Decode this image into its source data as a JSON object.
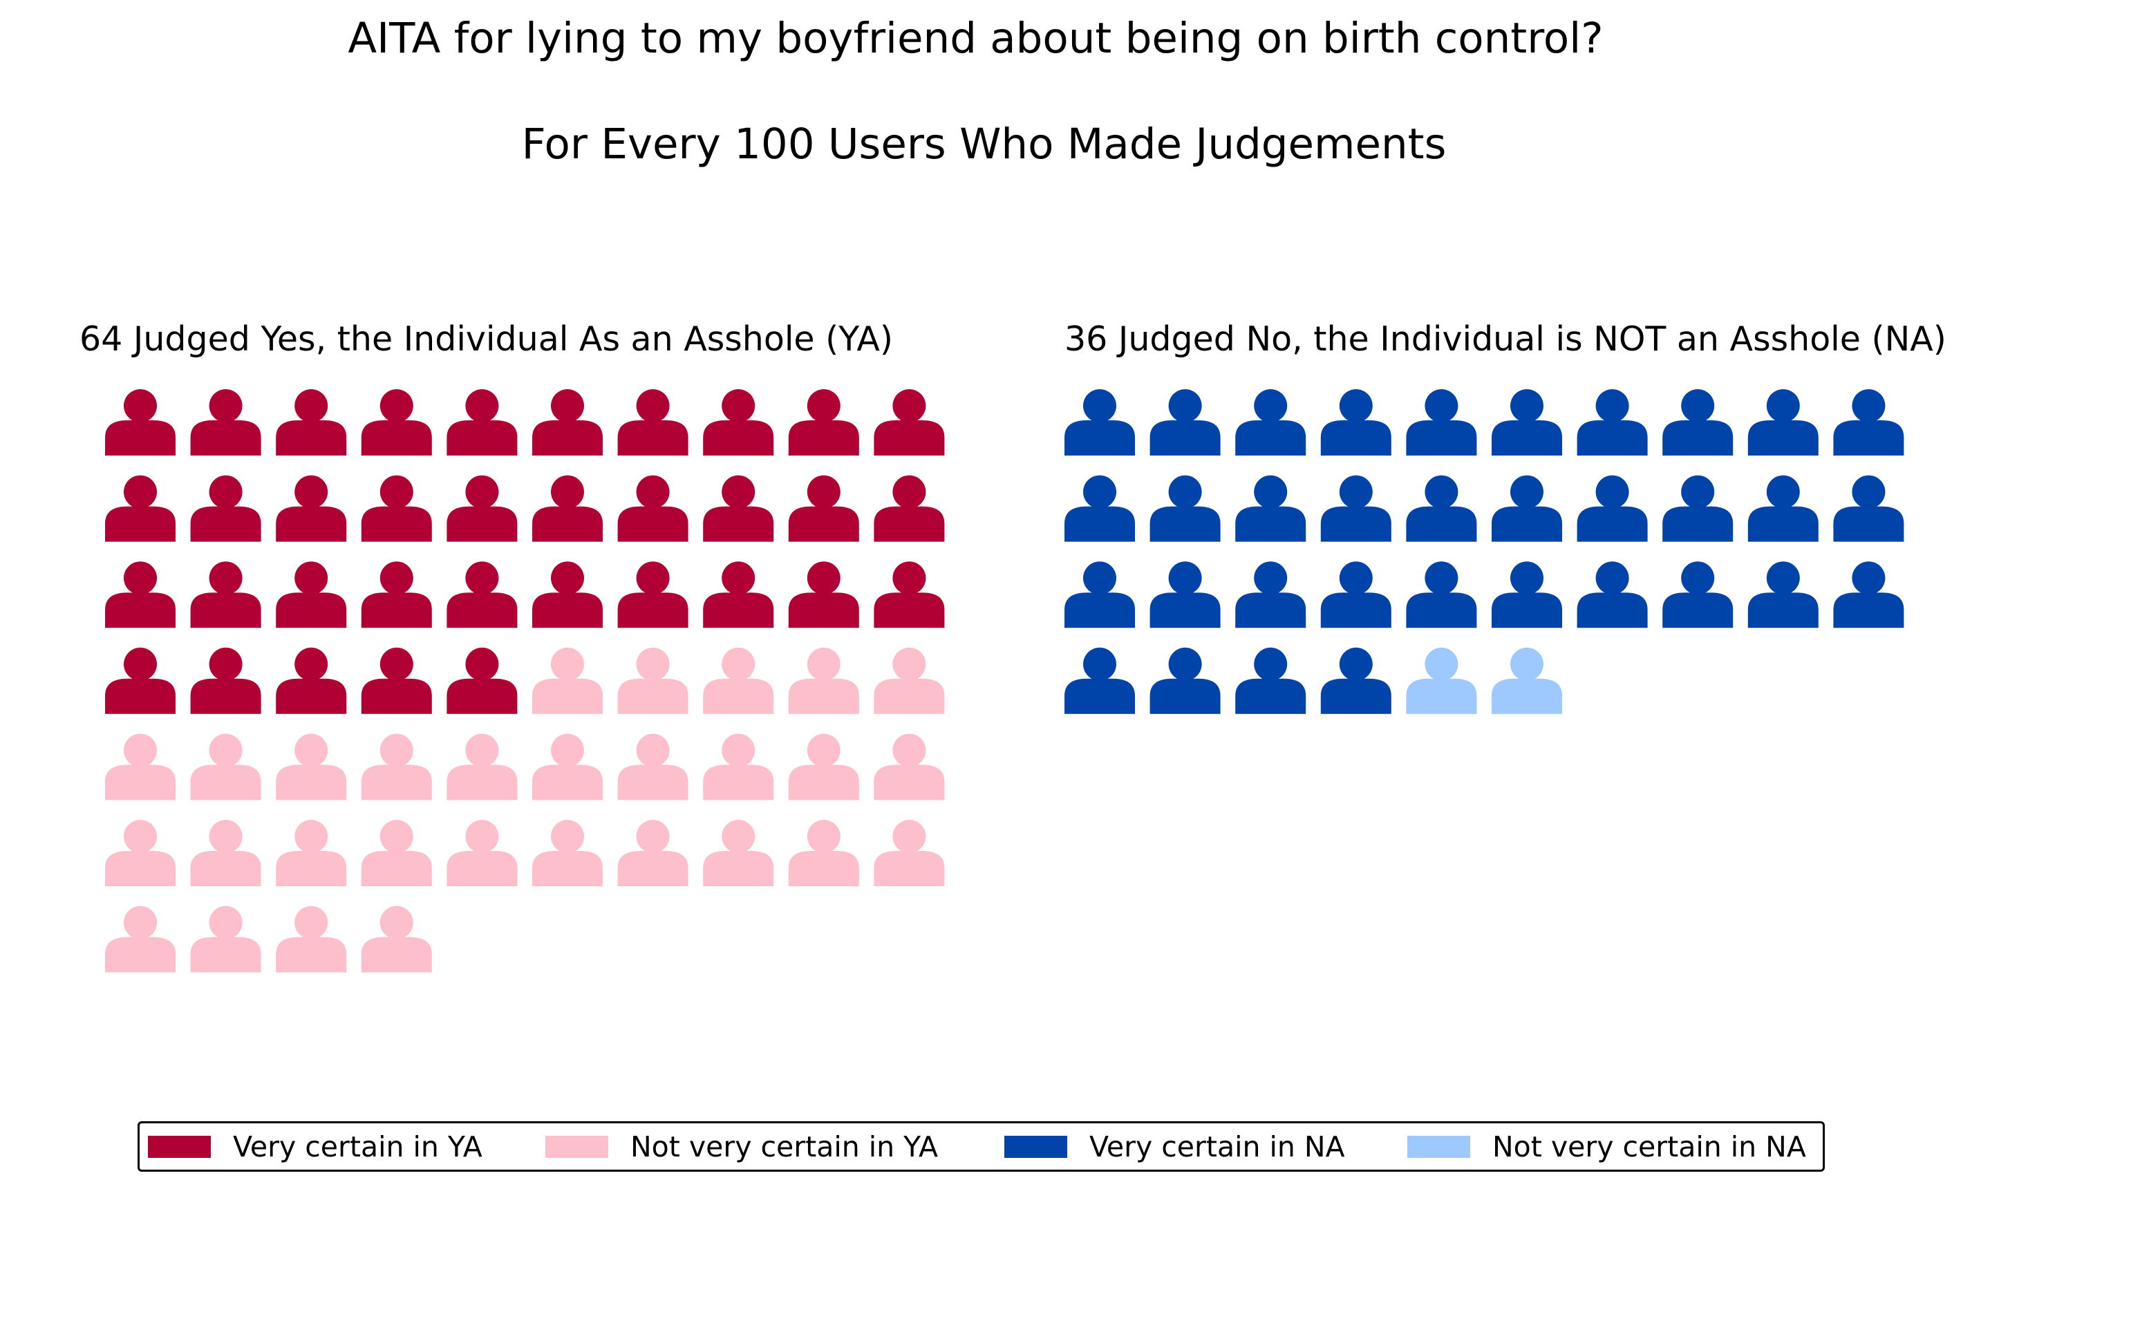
{
  "title": "AITA for lying to my boyfriend about being on birth control?",
  "subtitle": "For Every 100 Users Who Made Judgements",
  "chart_data": {
    "type": "pictograph",
    "total": 100,
    "panels": [
      {
        "key": "ya",
        "title": "64 Judged Yes, the Individual As an Asshole (YA)",
        "count": 64,
        "segments": [
          {
            "name": "Very certain in YA",
            "value": 35,
            "color": "#b10034"
          },
          {
            "name": "Not very certain in YA",
            "value": 29,
            "color": "#fdbfcc"
          }
        ]
      },
      {
        "key": "na",
        "title": "36 Judged No, the Individual is NOT an Asshole (NA)",
        "count": 36,
        "segments": [
          {
            "name": "Very certain in NA",
            "value": 34,
            "color": "#0043a9"
          },
          {
            "name": "Not very certain in NA",
            "value": 2,
            "color": "#9ec9ff"
          }
        ]
      }
    ],
    "icons_per_row": 10,
    "icon": "person-icon"
  },
  "legend": [
    {
      "label": "Very certain in YA",
      "color": "#b10034"
    },
    {
      "label": "Not very certain in YA",
      "color": "#fdbfcc"
    },
    {
      "label": "Very certain in NA",
      "color": "#0043a9"
    },
    {
      "label": "Not very certain in NA",
      "color": "#9ec9ff"
    }
  ]
}
